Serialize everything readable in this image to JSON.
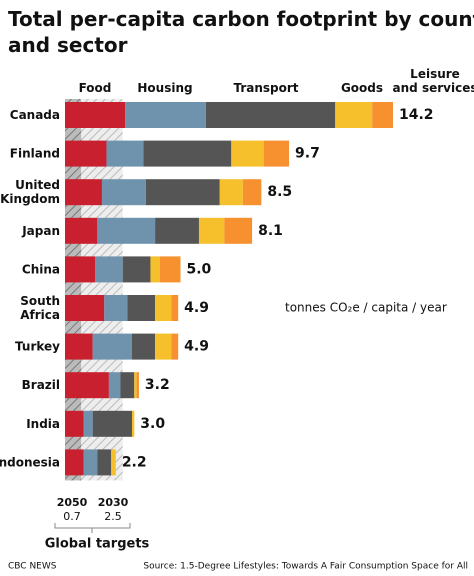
{
  "chart_data": {
    "type": "stacked-bar-horizontal",
    "title": "Total per-capita carbon footprint by country and sector",
    "unit_note": "tonnes CO₂e / capita / year",
    "categories": [
      "Canada",
      "Finland",
      "United Kingdom",
      "Japan",
      "China",
      "South Africa",
      "Turkey",
      "Brazil",
      "India",
      "Indonesia"
    ],
    "series": [
      {
        "name": "Food",
        "color": "#c8202f",
        "values": [
          2.6,
          1.8,
          1.6,
          1.4,
          1.3,
          1.7,
          1.2,
          1.9,
          0.8,
          0.8
        ]
      },
      {
        "name": "Housing",
        "color": "#6f93ad",
        "values": [
          3.5,
          1.6,
          1.9,
          2.5,
          1.2,
          1.0,
          1.7,
          0.5,
          0.4,
          0.6
        ]
      },
      {
        "name": "Transport",
        "color": "#555555",
        "values": [
          5.6,
          3.8,
          3.2,
          1.9,
          1.2,
          1.2,
          1.0,
          0.6,
          1.7,
          0.6
        ]
      },
      {
        "name": "Goods",
        "color": "#f5c02c",
        "values": [
          1.6,
          1.4,
          1.0,
          1.1,
          0.4,
          0.7,
          0.7,
          0.1,
          0.1,
          0.2
        ]
      },
      {
        "name": "Leisure and services",
        "color": "#f7902f",
        "values": [
          0.9,
          1.1,
          0.8,
          1.2,
          0.9,
          0.3,
          0.3,
          0.1,
          0.0,
          0.0
        ]
      }
    ],
    "totals": [
      14.2,
      9.7,
      8.5,
      8.1,
      5.0,
      4.9,
      4.9,
      3.2,
      3.0,
      2.2
    ],
    "total_labels": [
      "14.2",
      "9.7",
      "8.5",
      "8.1",
      "5.0",
      "4.9",
      "4.9",
      "3.2",
      "3.0",
      "2.2"
    ],
    "targets": [
      {
        "year": "2050",
        "value": 0.7,
        "label": "0.7"
      },
      {
        "year": "2030",
        "value": 2.5,
        "label": "2.5"
      }
    ],
    "targets_title": "Global targets",
    "xlim": [
      0,
      14.2
    ],
    "footer_left": "CBC NEWS",
    "source": "Source: 1.5-Degree Lifestyles: Towards A Fair Consumption Space for All"
  }
}
